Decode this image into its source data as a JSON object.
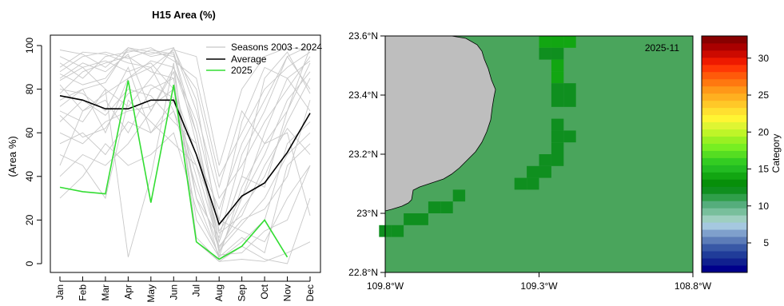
{
  "chart_data": [
    {
      "type": "line",
      "title": "H15 Area (%)",
      "ylabel": "(Area %)",
      "xlabel": "",
      "categories": [
        "Jan",
        "Feb",
        "Mar",
        "Apr",
        "May",
        "Jun",
        "Jul",
        "Aug",
        "Sep",
        "Oct",
        "Nov",
        "Dec"
      ],
      "ylim": [
        0,
        100
      ],
      "yticks": [
        0,
        20,
        40,
        60,
        80,
        100
      ],
      "legend_position": "top-right",
      "legend": [
        "Seasons 2003 - 2024",
        "Average",
        "2025"
      ],
      "series": [
        {
          "name": "Average",
          "color": "#000000",
          "values": [
            77,
            75,
            71,
            71,
            75,
            75,
            50,
            18,
            31,
            37,
            51,
            69
          ]
        },
        {
          "name": "2025",
          "color": "#33dd33",
          "values": [
            35,
            33,
            32,
            84,
            28,
            82,
            10,
            2,
            8,
            20,
            3,
            null
          ]
        }
      ],
      "seasons": {
        "name": "Seasons 2003 - 2024",
        "color": "#c8c8c8",
        "values": [
          [
            98,
            96,
            90,
            99,
            95,
            97,
            60,
            10,
            40,
            35,
            70,
            99
          ],
          [
            88,
            95,
            97,
            94,
            98,
            96,
            55,
            5,
            30,
            60,
            85,
            93
          ],
          [
            75,
            80,
            60,
            85,
            90,
            70,
            45,
            8,
            20,
            25,
            40,
            75
          ],
          [
            60,
            55,
            65,
            70,
            72,
            80,
            30,
            12,
            50,
            70,
            95,
            80
          ],
          [
            85,
            92,
            88,
            96,
            70,
            90,
            65,
            20,
            15,
            10,
            30,
            45
          ],
          [
            45,
            70,
            75,
            60,
            80,
            85,
            20,
            3,
            35,
            55,
            60,
            22
          ],
          [
            92,
            85,
            95,
            97,
            99,
            93,
            85,
            40,
            60,
            80,
            90,
            97
          ],
          [
            80,
            78,
            70,
            90,
            60,
            75,
            40,
            2,
            10,
            20,
            55,
            65
          ],
          [
            70,
            65,
            80,
            72,
            85,
            99,
            70,
            30,
            45,
            65,
            80,
            95
          ],
          [
            55,
            60,
            50,
            65,
            60,
            70,
            35,
            7,
            25,
            40,
            65,
            85
          ],
          [
            95,
            90,
            93,
            88,
            92,
            80,
            50,
            25,
            55,
            75,
            95,
            100
          ],
          [
            30,
            40,
            55,
            45,
            50,
            60,
            25,
            4,
            5,
            15,
            20,
            45
          ],
          [
            87,
            82,
            85,
            98,
            96,
            99,
            75,
            15,
            30,
            50,
            75,
            88
          ],
          [
            65,
            75,
            68,
            80,
            77,
            65,
            55,
            10,
            40,
            85,
            97,
            78
          ],
          [
            78,
            88,
            92,
            95,
            88,
            85,
            10,
            1,
            2,
            1,
            5,
            10
          ],
          [
            50,
            45,
            30,
            75,
            65,
            55,
            45,
            20,
            65,
            90,
            85,
            70
          ],
          [
            82,
            70,
            78,
            85,
            93,
            90,
            60,
            6,
            18,
            30,
            50,
            60
          ],
          [
            72,
            80,
            83,
            99,
            97,
            95,
            80,
            35,
            70,
            55,
            70,
            92
          ],
          [
            40,
            50,
            45,
            55,
            70,
            88,
            30,
            3,
            12,
            5,
            45,
            55
          ],
          [
            90,
            97,
            96,
            92,
            90,
            98,
            95,
            45,
            80,
            95,
            99,
            98
          ],
          [
            68,
            58,
            62,
            78,
            82,
            76,
            50,
            14,
            22,
            45,
            62,
            50
          ],
          [
            84,
            90,
            80,
            3,
            40,
            92,
            12,
            1,
            8,
            2,
            0,
            30
          ]
        ]
      }
    },
    {
      "type": "heatmap",
      "label": "2025-11",
      "x_ticks": [
        "109.8°W",
        "109.3°W",
        "108.8°W"
      ],
      "y_ticks": [
        "23.6°N",
        "23.4°N",
        "23.2°N",
        "23°N",
        "22.8°N"
      ],
      "x_range": [
        -109.8,
        -108.8
      ],
      "y_range": [
        22.8,
        23.6
      ],
      "colorbar_label": "Category",
      "colorbar_ticks": [
        5,
        10,
        15,
        20,
        25,
        30
      ],
      "colorbar_range": [
        1,
        33
      ],
      "land_color": "#bebebe",
      "ocean_color": "#4aa55c",
      "cells": [
        {
          "lat": 23.58,
          "lon": -109.28,
          "category": 14
        },
        {
          "lat": 23.58,
          "lon": -109.24,
          "category": 14
        },
        {
          "lat": 23.58,
          "lon": -109.2,
          "category": 14
        },
        {
          "lat": 23.54,
          "lon": -109.28,
          "category": 12
        },
        {
          "lat": 23.54,
          "lon": -109.24,
          "category": 12
        },
        {
          "lat": 23.5,
          "lon": -109.24,
          "category": 14
        },
        {
          "lat": 23.46,
          "lon": -109.24,
          "category": 14
        },
        {
          "lat": 23.42,
          "lon": -109.24,
          "category": 12
        },
        {
          "lat": 23.42,
          "lon": -109.2,
          "category": 12
        },
        {
          "lat": 23.38,
          "lon": -109.24,
          "category": 12
        },
        {
          "lat": 23.38,
          "lon": -109.2,
          "category": 12
        },
        {
          "lat": 23.3,
          "lon": -109.24,
          "category": 12
        },
        {
          "lat": 23.26,
          "lon": -109.24,
          "category": 12
        },
        {
          "lat": 23.26,
          "lon": -109.2,
          "category": 12
        },
        {
          "lat": 23.22,
          "lon": -109.24,
          "category": 12
        },
        {
          "lat": 23.18,
          "lon": -109.28,
          "category": 12
        },
        {
          "lat": 23.18,
          "lon": -109.24,
          "category": 12
        },
        {
          "lat": 23.14,
          "lon": -109.32,
          "category": 12
        },
        {
          "lat": 23.14,
          "lon": -109.28,
          "category": 12
        },
        {
          "lat": 23.1,
          "lon": -109.36,
          "category": 12
        },
        {
          "lat": 23.1,
          "lon": -109.32,
          "category": 12
        },
        {
          "lat": 23.06,
          "lon": -109.56,
          "category": 12
        },
        {
          "lat": 23.02,
          "lon": -109.6,
          "category": 12
        },
        {
          "lat": 23.02,
          "lon": -109.64,
          "category": 12
        },
        {
          "lat": 22.98,
          "lon": -109.68,
          "category": 12
        },
        {
          "lat": 22.98,
          "lon": -109.72,
          "category": 12
        },
        {
          "lat": 22.94,
          "lon": -109.76,
          "category": 12
        },
        {
          "lat": 22.94,
          "lon": -109.8,
          "category": 12
        }
      ]
    }
  ]
}
